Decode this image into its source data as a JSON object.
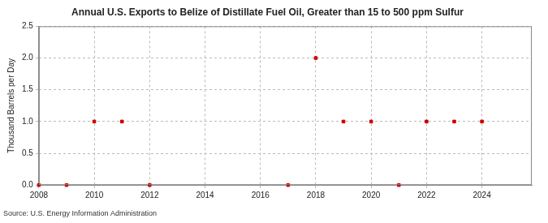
{
  "chart_data": {
    "type": "scatter",
    "title": "Annual U.S. Exports to Belize of Distillate Fuel Oil, Greater than 15 to 500 ppm Sulfur",
    "y_label": "Thousand Barrels per Day",
    "source": "Source: U.S. Energy Information Administration",
    "x": [
      2008,
      2009,
      2010,
      2011,
      2012,
      2017,
      2018,
      2019,
      2020,
      2021,
      2022,
      2023,
      2024
    ],
    "values": [
      0,
      0,
      1,
      1,
      0,
      0,
      2,
      1,
      1,
      0,
      1,
      1,
      1
    ],
    "color": "#cc0000",
    "marker": "square",
    "xlim": [
      2008,
      2025.8
    ],
    "xticks": [
      2008,
      2010,
      2012,
      2014,
      2016,
      2018,
      2020,
      2022,
      2024
    ],
    "ylim": [
      0,
      2.5
    ],
    "yticks": [
      {
        "value": 0,
        "label": "0.0"
      },
      {
        "value": 0.5,
        "label": "0.5"
      },
      {
        "value": 1,
        "label": "1.0"
      },
      {
        "value": 1.5,
        "label": "1.5"
      },
      {
        "value": 2,
        "label": "2.0"
      },
      {
        "value": 2.5,
        "label": "2.5"
      }
    ],
    "grid": true
  }
}
